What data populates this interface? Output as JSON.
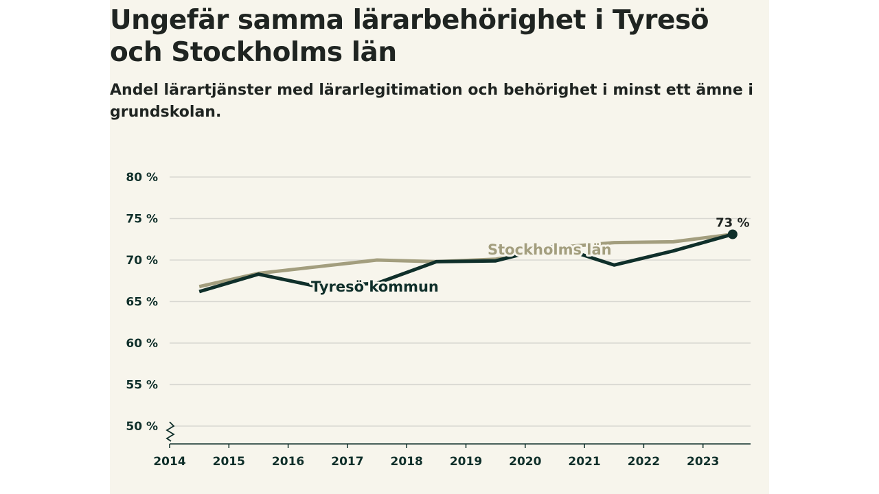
{
  "chart_data": {
    "type": "line",
    "title": "Ungefär samma lärarbehörighet i Tyresö och Stockholms län",
    "subtitle": "Andel lärartjänster med lärarlegitimation och behörighet i minst ett ämne i grundskolan.",
    "x": [
      2014.5,
      2015.5,
      2016.5,
      2017.5,
      2018.5,
      2019.5,
      2020.5,
      2021.5,
      2022.5,
      2023.5
    ],
    "xlim": [
      2014,
      2024
    ],
    "xticks": [
      2014,
      2015,
      2016,
      2017,
      2018,
      2019,
      2020,
      2021,
      2022,
      2023
    ],
    "xtick_labels": [
      "2014",
      "2015",
      "2016",
      "2017",
      "2018",
      "2019",
      "2020",
      "2021",
      "2022",
      "2023"
    ],
    "ylim": [
      50,
      80
    ],
    "yticks": [
      50,
      55,
      60,
      65,
      70,
      75,
      80
    ],
    "ytick_labels": [
      "50 %",
      "55 %",
      "60 %",
      "65 %",
      "70 %",
      "75 %",
      "80 %"
    ],
    "axis_break": true,
    "grid": true,
    "series": [
      {
        "name": "Stockholms län",
        "color": "#a39e7e",
        "values": [
          66.8,
          68.4,
          69.2,
          70.0,
          69.8,
          70.1,
          71.5,
          72.1,
          72.2,
          73.1
        ]
      },
      {
        "name": "Tyresö kommun",
        "color": "#0f2f2a",
        "values": [
          66.2,
          68.3,
          66.8,
          67.2,
          69.8,
          69.9,
          71.7,
          69.4,
          71.1,
          73.1
        ]
      }
    ],
    "series_labels": [
      "Stockholms län",
      "Tyresö kommun"
    ],
    "annotation": {
      "text": "73 %",
      "series": "Tyresö kommun",
      "x": 2023.5,
      "value": 73.1
    }
  }
}
